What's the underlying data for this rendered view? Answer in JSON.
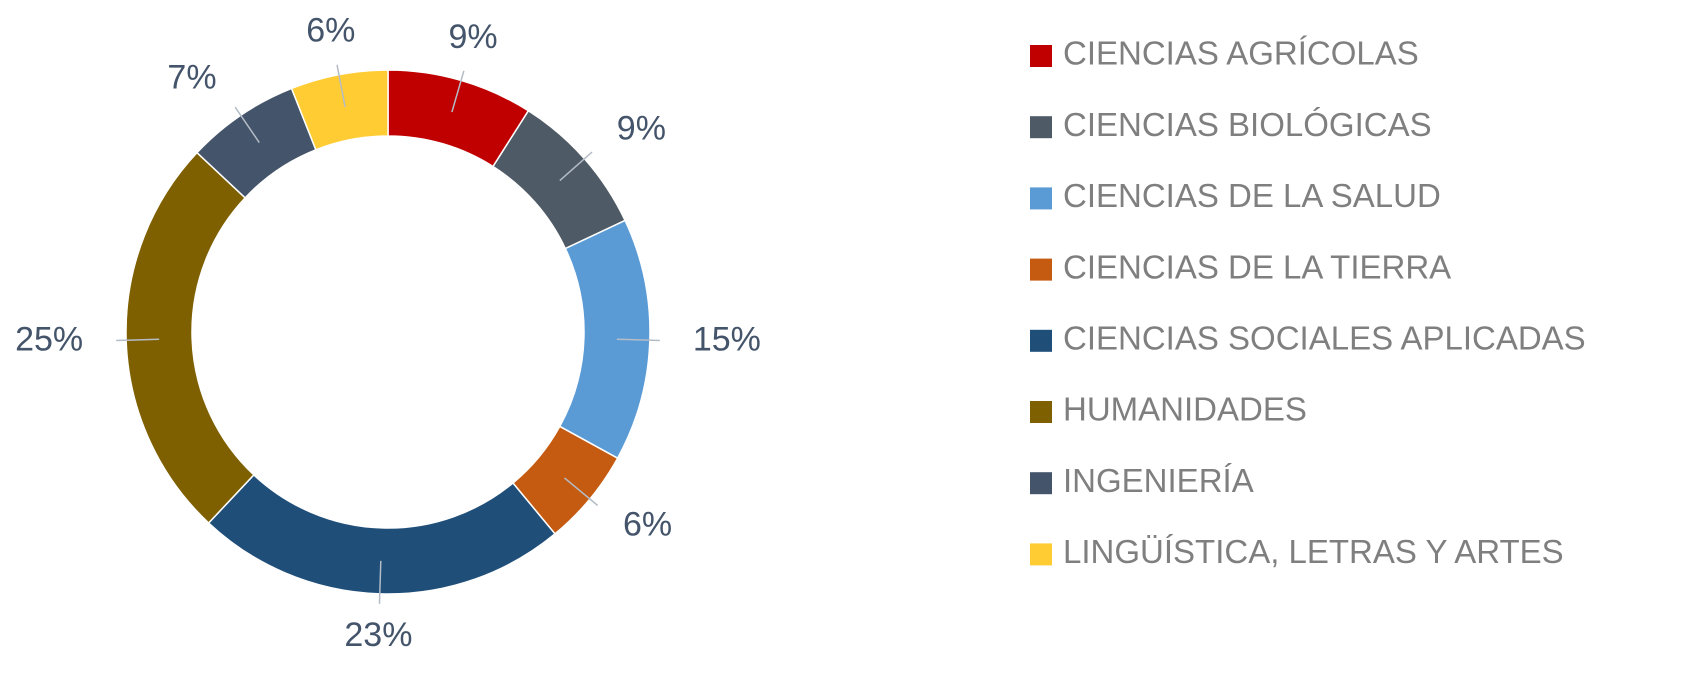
{
  "chart_data": {
    "type": "donut",
    "categories": [
      "CIENCIAS AGRÍCOLAS",
      "CIENCIAS BIOLÓGICAS",
      "CIENCIAS DE LA SALUD",
      "CIENCIAS DE LA TIERRA",
      "CIENCIAS SOCIALES APLICADAS",
      "HUMANIDADES",
      "INGENIERÍA",
      "LINGÜÍSTICA, LETRAS Y ARTES"
    ],
    "values": [
      9,
      9,
      15,
      6,
      23,
      25,
      7,
      6
    ],
    "value_labels": [
      "9%",
      "9%",
      "15%",
      "6%",
      "23%",
      "25%",
      "7%",
      "6%"
    ],
    "colors": [
      "#c00000",
      "#4e5a65",
      "#5b9bd5",
      "#c55a11",
      "#1f4e79",
      "#7f6000",
      "#44546a",
      "#ffcc33"
    ],
    "legend": "right"
  }
}
